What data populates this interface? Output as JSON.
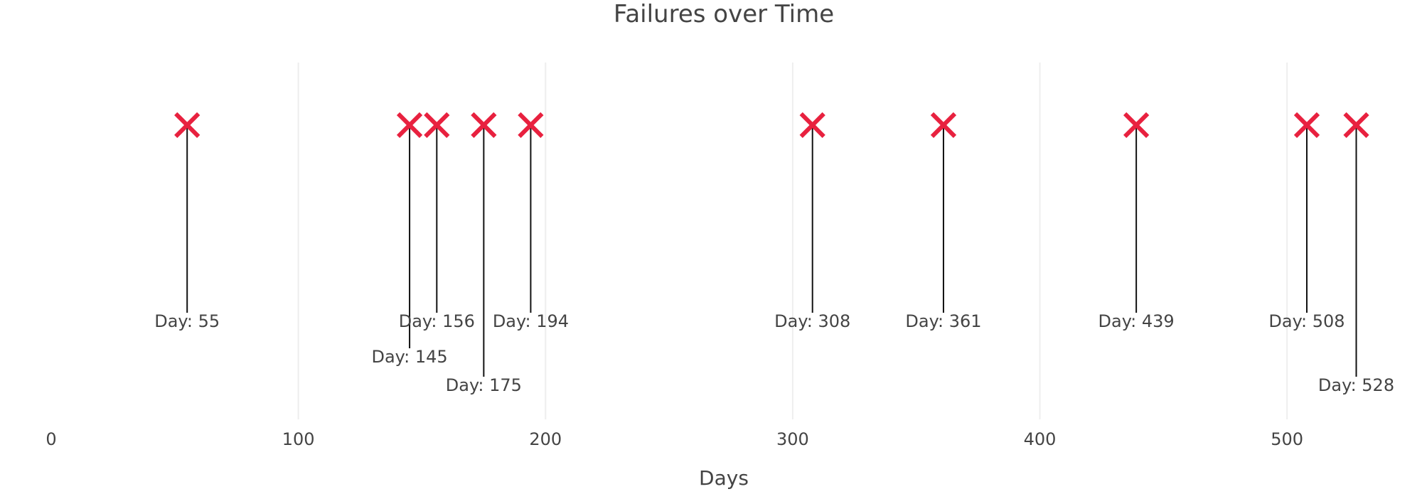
{
  "chart_data": {
    "type": "scatter",
    "title": "Failures over Time",
    "xlabel": "Days",
    "ylabel": "",
    "xlim": [
      0,
      550
    ],
    "xticks": [
      0,
      100,
      200,
      300,
      400,
      500
    ],
    "grid": true,
    "marker": "x",
    "colors": {
      "marker": "#e8213f",
      "stem": "#111111",
      "grid": "#eeeeee",
      "text": "#444444"
    },
    "events": [
      {
        "day": 55,
        "label": "Day: 55"
      },
      {
        "day": 145,
        "label": "Day: 145"
      },
      {
        "day": 156,
        "label": "Day: 156"
      },
      {
        "day": 175,
        "label": "Day: 175"
      },
      {
        "day": 194,
        "label": "Day: 194"
      },
      {
        "day": 308,
        "label": "Day: 308"
      },
      {
        "day": 361,
        "label": "Day: 361"
      },
      {
        "day": 439,
        "label": "Day: 439"
      },
      {
        "day": 508,
        "label": "Day: 508"
      },
      {
        "day": 528,
        "label": "Day: 528"
      }
    ]
  }
}
